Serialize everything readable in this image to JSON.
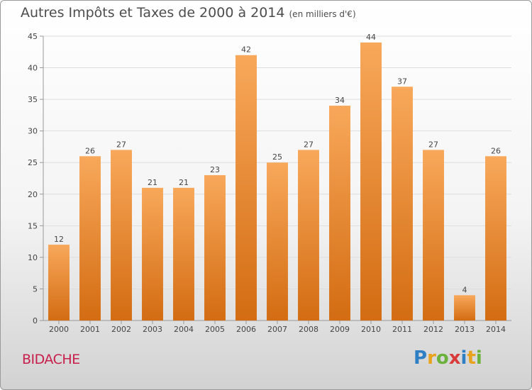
{
  "header": {
    "title": "Autres Impôts et Taxes de 2000 à 2014",
    "unit": "(en milliers d'€)"
  },
  "footer": {
    "commune": "BIDACHE",
    "logo_letters": [
      {
        "ch": "P",
        "color": "#2f7fc4"
      },
      {
        "ch": "r",
        "color": "#e8a21c"
      },
      {
        "ch": "o",
        "color": "#6ab23c"
      },
      {
        "ch": "x",
        "color": "#d93a3a"
      },
      {
        "ch": "i",
        "color": "#2f7fc4"
      },
      {
        "ch": "t",
        "color": "#e8a21c"
      },
      {
        "ch": "i",
        "color": "#6ab23c"
      }
    ]
  },
  "chart_data": {
    "type": "bar",
    "title": "Autres Impôts et Taxes de 2000 à 2014",
    "subtitle": "(en milliers d'€)",
    "xlabel": "",
    "ylabel": "",
    "categories": [
      "2000",
      "2001",
      "2002",
      "2003",
      "2004",
      "2005",
      "2006",
      "2007",
      "2008",
      "2009",
      "2010",
      "2011",
      "2012",
      "2013",
      "2014"
    ],
    "values": [
      12,
      26,
      27,
      21,
      21,
      23,
      42,
      25,
      27,
      34,
      44,
      37,
      27,
      4,
      26
    ],
    "ylim": [
      0,
      45
    ],
    "yticks": [
      0,
      5,
      10,
      15,
      20,
      25,
      30,
      35,
      40,
      45
    ],
    "grid": true,
    "colors": {
      "bar_light": "#f8a85a",
      "bar_dark": "#d36c12",
      "grid": "#dddddd",
      "axis": "#999999",
      "text": "#444444"
    }
  }
}
